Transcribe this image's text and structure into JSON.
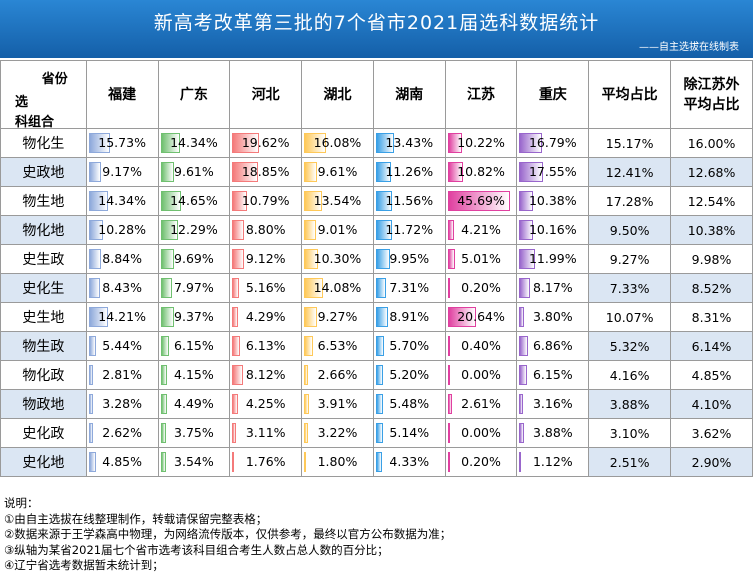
{
  "title": "新高考改革第三批的7个省市2021届选科数据统计",
  "subtitle": "——自主选拔在线制表",
  "header": {
    "diag_top": "省份",
    "diag_mid": "选",
    "diag_bottom": "科组合",
    "columns": [
      "福建",
      "广东",
      "河北",
      "湖北",
      "湖南",
      "江苏",
      "重庆",
      "平均占比",
      "除江苏外\n平均占比"
    ]
  },
  "colors": {
    "福建": "#8ea9db",
    "广东": "#70c070",
    "河北": "#f47a7a",
    "湖北": "#ffc959",
    "湖南": "#3aa0e6",
    "江苏": "#e040a0",
    "重庆": "#9966cc"
  },
  "rows": [
    {
      "combo": "物化生",
      "values": [
        "15.73%",
        "14.34%",
        "19.62%",
        "16.08%",
        "13.43%",
        "10.22%",
        "16.79%",
        "15.17%",
        "16.00%"
      ]
    },
    {
      "combo": "史政地",
      "values": [
        "9.17%",
        "9.61%",
        "18.85%",
        "9.61%",
        "11.26%",
        "10.82%",
        "17.55%",
        "12.41%",
        "12.68%"
      ]
    },
    {
      "combo": "物生地",
      "values": [
        "14.34%",
        "14.65%",
        "10.79%",
        "13.54%",
        "11.56%",
        "45.69%",
        "10.38%",
        "17.28%",
        "12.54%"
      ]
    },
    {
      "combo": "物化地",
      "values": [
        "10.28%",
        "12.29%",
        "8.80%",
        "9.01%",
        "11.72%",
        "4.21%",
        "10.16%",
        "9.50%",
        "10.38%"
      ]
    },
    {
      "combo": "史生政",
      "values": [
        "8.84%",
        "9.69%",
        "9.12%",
        "10.30%",
        "9.95%",
        "5.01%",
        "11.99%",
        "9.27%",
        "9.98%"
      ]
    },
    {
      "combo": "史化生",
      "values": [
        "8.43%",
        "7.97%",
        "5.16%",
        "14.08%",
        "7.31%",
        "0.20%",
        "8.17%",
        "7.33%",
        "8.52%"
      ]
    },
    {
      "combo": "史生地",
      "values": [
        "14.21%",
        "9.37%",
        "4.29%",
        "9.27%",
        "8.91%",
        "20.64%",
        "3.80%",
        "10.07%",
        "8.31%"
      ]
    },
    {
      "combo": "物生政",
      "values": [
        "5.44%",
        "6.15%",
        "6.13%",
        "6.53%",
        "5.70%",
        "0.40%",
        "6.86%",
        "5.32%",
        "6.14%"
      ]
    },
    {
      "combo": "物化政",
      "values": [
        "2.81%",
        "4.15%",
        "8.12%",
        "2.66%",
        "5.20%",
        "0.00%",
        "6.15%",
        "4.16%",
        "4.85%"
      ]
    },
    {
      "combo": "物政地",
      "values": [
        "3.28%",
        "4.49%",
        "4.25%",
        "3.91%",
        "5.48%",
        "2.61%",
        "3.16%",
        "3.88%",
        "4.10%"
      ]
    },
    {
      "combo": "史化政",
      "values": [
        "2.62%",
        "3.75%",
        "3.11%",
        "3.22%",
        "5.14%",
        "0.00%",
        "3.88%",
        "3.10%",
        "3.62%"
      ]
    },
    {
      "combo": "史化地",
      "values": [
        "4.85%",
        "3.54%",
        "1.76%",
        "1.80%",
        "4.33%",
        "0.20%",
        "1.12%",
        "2.51%",
        "2.90%"
      ]
    }
  ],
  "notes": [
    "说明：",
    "①由自主选拔在线整理制作，转载请保留完整表格；",
    "②数据来源于王学森高中物理，为网络流传版本，仅供参考，最终以官方公布数据为准；",
    "③纵轴为某省2021届七个省市选考该科目组合考生人数占总人数的百分比；",
    "④辽宁省选考数据暂未统计到；"
  ]
}
